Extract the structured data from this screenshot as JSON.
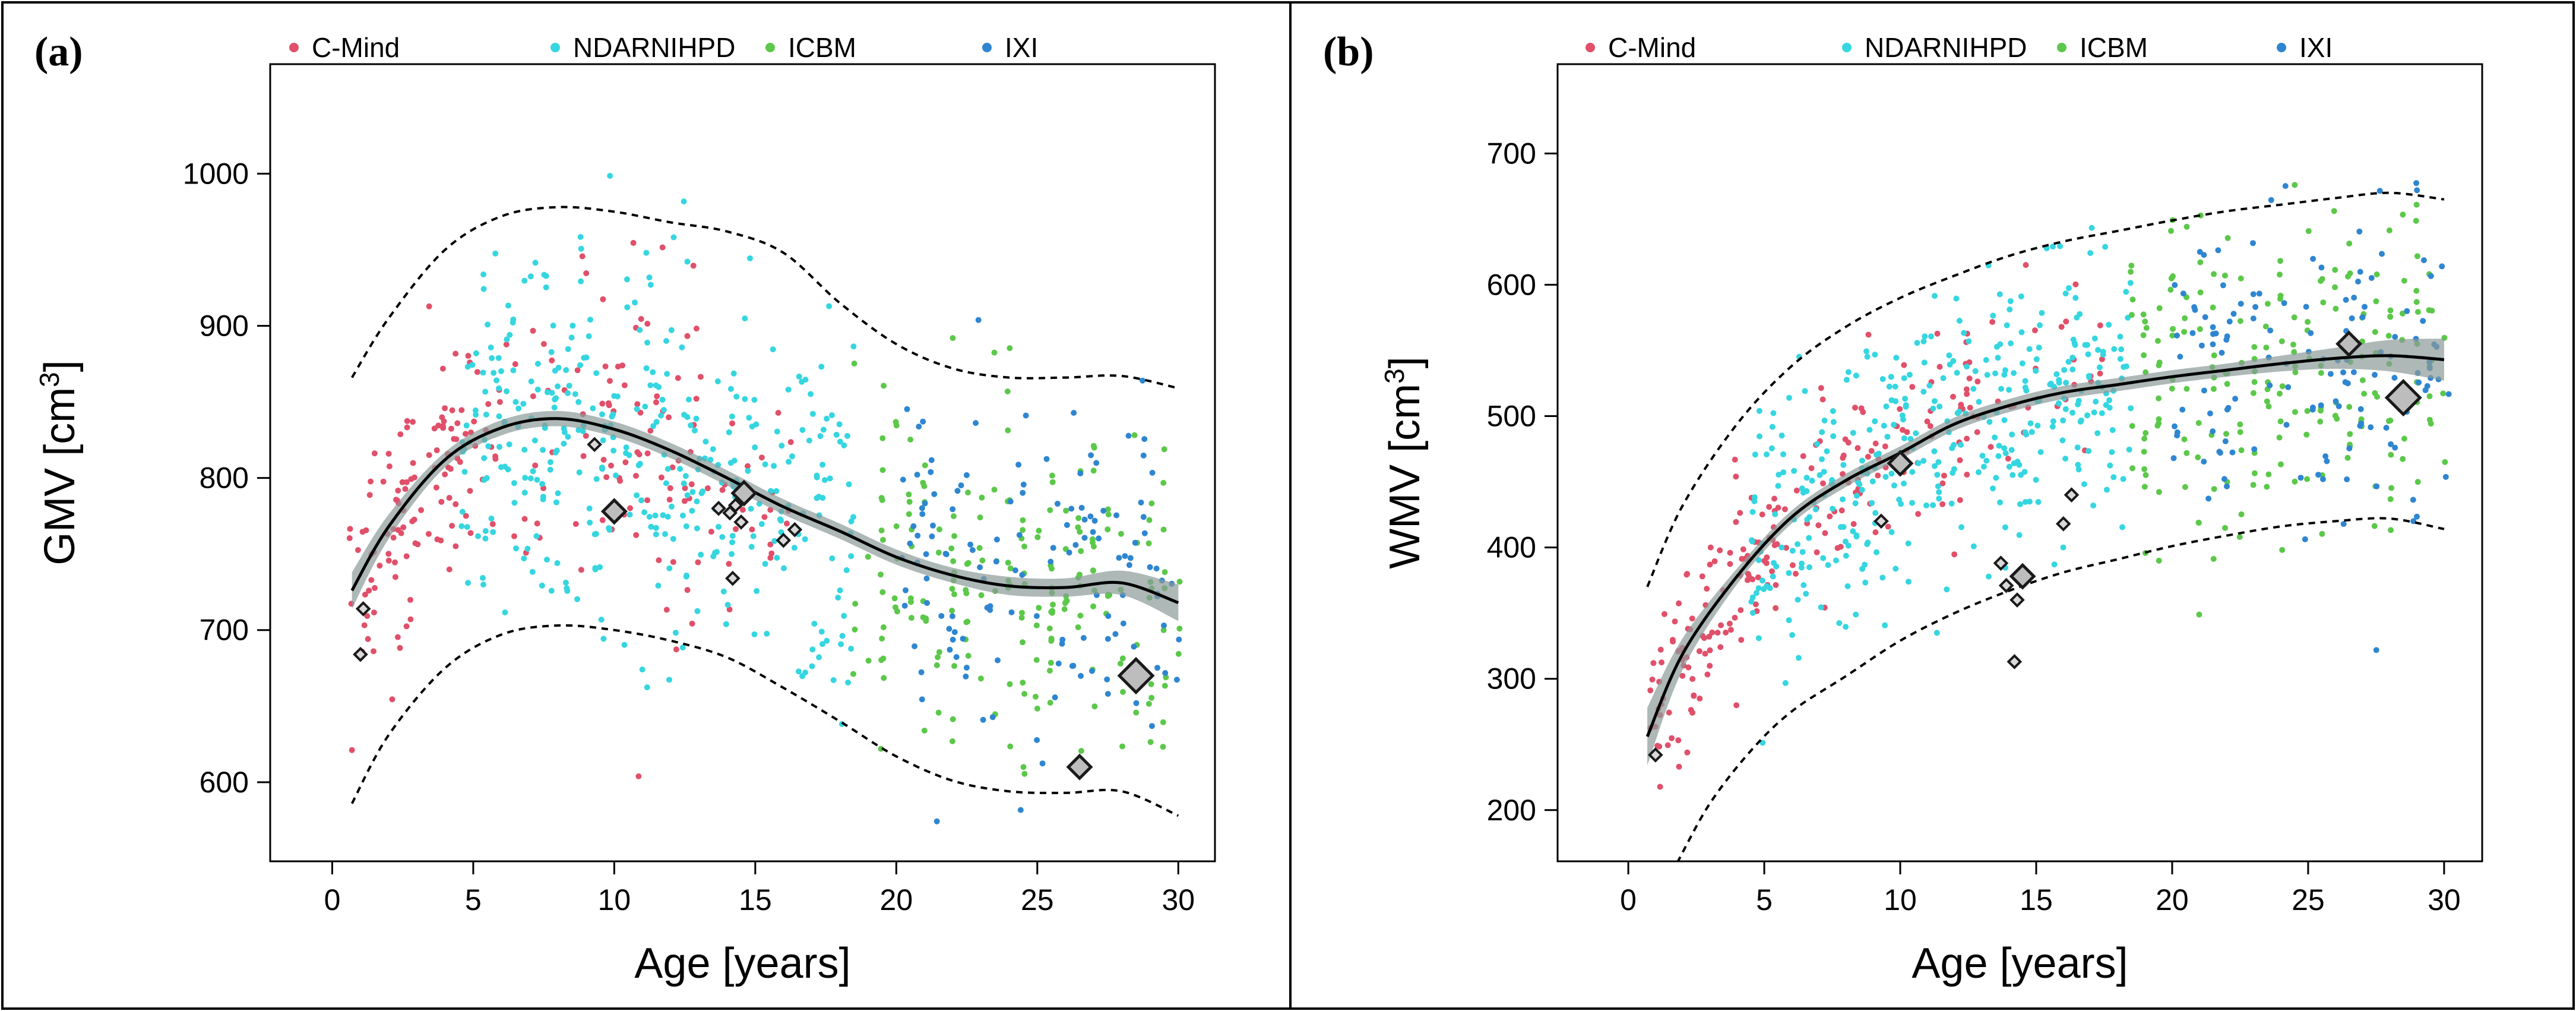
{
  "chart_data": [
    {
      "panel": "(a)",
      "type": "scatter",
      "title": "",
      "xlabel": "Age [years]",
      "ylabel_main": "GMV [cm",
      "ylabel_sup": "3",
      "ylabel_end": "]",
      "xlim": [
        -2.2,
        31.3
      ],
      "ylim": [
        548,
        1072
      ],
      "xticks": [
        0,
        5,
        10,
        15,
        20,
        25,
        30
      ],
      "yticks": [
        600,
        700,
        800,
        900,
        1000
      ],
      "legend": [
        {
          "name": "C-Mind",
          "color": "#e0506a"
        },
        {
          "name": "NDARNIHPD",
          "color": "#35d6e0"
        },
        {
          "name": "ICBM",
          "color": "#5cc84a"
        },
        {
          "name": "IXI",
          "color": "#2f86d0"
        }
      ],
      "fit": {
        "x": [
          0.7,
          2,
          4,
          6,
          8,
          10,
          12,
          14,
          16,
          18,
          20,
          22,
          24,
          26,
          28,
          30
        ],
        "y": [
          726,
          768,
          812,
          833,
          839,
          832,
          818,
          800,
          781,
          765,
          748,
          736,
          729,
          728,
          731,
          718
        ]
      },
      "band_width": [
        12,
        8,
        5,
        5,
        5,
        5,
        5,
        5,
        5,
        5,
        5,
        5,
        6,
        6,
        8,
        12
      ],
      "upper": {
        "x": [
          0.7,
          2,
          4,
          6,
          8,
          10,
          12,
          14,
          16,
          18,
          20,
          22,
          24,
          26,
          28,
          30
        ],
        "y": [
          866,
          905,
          950,
          972,
          978,
          975,
          968,
          962,
          948,
          915,
          888,
          872,
          866,
          866,
          867,
          859
        ]
      },
      "lower": {
        "x": [
          0.7,
          2,
          4,
          6,
          8,
          10,
          12,
          14,
          16,
          18,
          20,
          22,
          24,
          26,
          28,
          30
        ],
        "y": [
          586,
          631,
          675,
          697,
          703,
          700,
          693,
          682,
          662,
          640,
          617,
          601,
          594,
          593,
          594,
          578
        ]
      },
      "diamonds": [
        {
          "x": 1.0,
          "y": 684,
          "s": 1
        },
        {
          "x": 1.1,
          "y": 714,
          "s": 1
        },
        {
          "x": 9.3,
          "y": 822,
          "s": 1
        },
        {
          "x": 10.0,
          "y": 778,
          "s": 2
        },
        {
          "x": 13.7,
          "y": 780,
          "s": 1
        },
        {
          "x": 14.1,
          "y": 777,
          "s": 1
        },
        {
          "x": 14.3,
          "y": 782,
          "s": 1
        },
        {
          "x": 14.6,
          "y": 790,
          "s": 2
        },
        {
          "x": 14.5,
          "y": 771,
          "s": 1
        },
        {
          "x": 14.2,
          "y": 734,
          "s": 1
        },
        {
          "x": 16.0,
          "y": 759,
          "s": 1
        },
        {
          "x": 16.4,
          "y": 766,
          "s": 1
        },
        {
          "x": 26.5,
          "y": 610,
          "s": 2
        },
        {
          "x": 28.5,
          "y": 670,
          "s": 3
        }
      ],
      "cloud": [
        {
          "g": 0,
          "x0": 0.6,
          "x1": 5.5,
          "n": 110,
          "f": "a",
          "sd": 38
        },
        {
          "g": 0,
          "x0": 5.5,
          "x1": 13,
          "n": 95,
          "f": "a",
          "sd": 55
        },
        {
          "g": 0,
          "x0": 13,
          "x1": 16.5,
          "n": 25,
          "f": "a",
          "sd": 42
        },
        {
          "g": 1,
          "x0": 4.5,
          "x1": 18.5,
          "n": 380,
          "f": "a",
          "sd": 60
        },
        {
          "g": 2,
          "x0": 18.5,
          "x1": 30.2,
          "n": 210,
          "f": "a",
          "sd": 52
        },
        {
          "g": 3,
          "x0": 20,
          "x1": 30.2,
          "n": 135,
          "f": "a",
          "sd": 55
        }
      ]
    },
    {
      "panel": "(b)",
      "type": "scatter",
      "title": "",
      "xlabel": "Age [years]",
      "ylabel_main": "WMV [cm",
      "ylabel_sup": "3",
      "ylabel_end": "]",
      "xlim": [
        -2.6,
        31.4
      ],
      "ylim": [
        161,
        768
      ],
      "xticks": [
        0,
        5,
        10,
        15,
        20,
        25,
        30
      ],
      "yticks": [
        200,
        300,
        400,
        500,
        600,
        700
      ],
      "legend": [
        {
          "name": "C-Mind",
          "color": "#e0506a"
        },
        {
          "name": "NDARNIHPD",
          "color": "#35d6e0"
        },
        {
          "name": "ICBM",
          "color": "#5cc84a"
        },
        {
          "name": "IXI",
          "color": "#2f86d0"
        }
      ],
      "fit": {
        "x": [
          0.7,
          2,
          4,
          6,
          8,
          10,
          12,
          14,
          16,
          18,
          20,
          22,
          24,
          26,
          28,
          30
        ],
        "y": [
          256,
          319,
          378,
          423,
          451,
          472,
          494,
          508,
          518,
          524,
          530,
          535,
          540,
          544,
          546,
          543
        ]
      },
      "band_width": [
        22,
        12,
        6,
        5,
        5,
        5,
        5,
        5,
        5,
        5,
        5,
        5,
        6,
        8,
        12,
        16
      ],
      "upper": {
        "x": [
          0.7,
          2,
          4,
          6,
          8,
          10,
          12,
          14,
          16,
          18,
          20,
          22,
          24,
          26,
          28,
          30
        ],
        "y": [
          370,
          432,
          494,
          538,
          568,
          590,
          607,
          622,
          633,
          641,
          649,
          656,
          661,
          666,
          670,
          665
        ]
      },
      "lower": {
        "x": [
          1.8,
          3,
          4.5,
          6,
          8,
          10,
          12,
          14,
          16,
          18,
          20,
          22,
          24,
          26,
          28,
          30
        ],
        "y": [
          160,
          205,
          245,
          275,
          302,
          329,
          350,
          367,
          381,
          391,
          401,
          409,
          416,
          420,
          422,
          414
        ]
      },
      "diamonds": [
        {
          "x": 1.0,
          "y": 242,
          "s": 1
        },
        {
          "x": 9.3,
          "y": 420,
          "s": 1
        },
        {
          "x": 10.0,
          "y": 464,
          "s": 2
        },
        {
          "x": 13.7,
          "y": 388,
          "s": 1
        },
        {
          "x": 13.9,
          "y": 371,
          "s": 1
        },
        {
          "x": 14.3,
          "y": 360,
          "s": 1
        },
        {
          "x": 14.5,
          "y": 378,
          "s": 2
        },
        {
          "x": 14.2,
          "y": 313,
          "s": 1
        },
        {
          "x": 16.0,
          "y": 418,
          "s": 1
        },
        {
          "x": 16.3,
          "y": 440,
          "s": 1
        },
        {
          "x": 26.5,
          "y": 555,
          "s": 2
        },
        {
          "x": 28.5,
          "y": 514,
          "s": 3
        }
      ],
      "cloud": [
        {
          "g": 0,
          "x0": 0.8,
          "x1": 5.5,
          "n": 110,
          "f": "b",
          "sd": 32
        },
        {
          "g": 0,
          "x0": 5.5,
          "x1": 13,
          "n": 95,
          "f": "b",
          "sd": 40
        },
        {
          "g": 0,
          "x0": 13,
          "x1": 17.5,
          "n": 25,
          "f": "b",
          "sd": 42
        },
        {
          "g": 1,
          "x0": 4.5,
          "x1": 18.5,
          "n": 380,
          "f": "b",
          "sd": 52
        },
        {
          "g": 2,
          "x0": 18.5,
          "x1": 30.2,
          "n": 210,
          "f": "b",
          "sd": 62
        },
        {
          "g": 3,
          "x0": 20,
          "x1": 30.2,
          "n": 135,
          "f": "b",
          "sd": 58
        }
      ]
    }
  ]
}
